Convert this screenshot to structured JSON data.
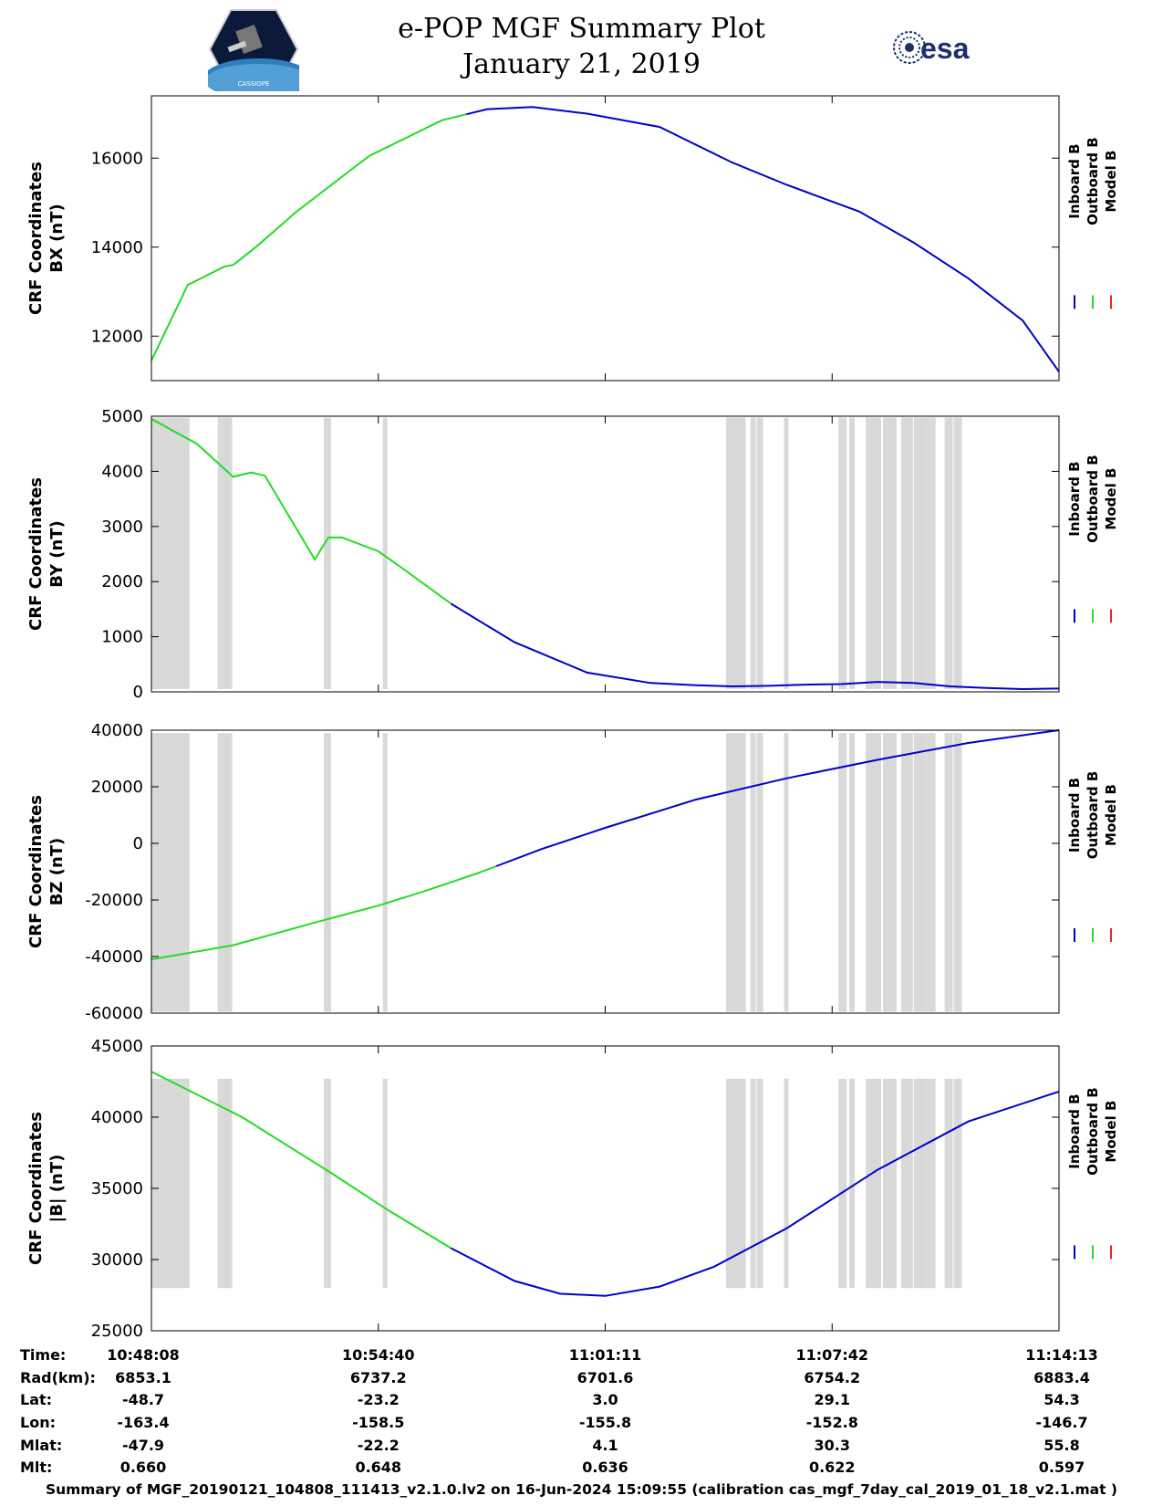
{
  "title": {
    "line1": "e-POP MGF Summary Plot",
    "line2": "January 21, 2019",
    "logo_left_text": "CASSIOPE",
    "logo_right_text": "esa"
  },
  "colors": {
    "inboard": "#0000cc",
    "outboard": "#22dd22",
    "model": "#ee2222",
    "shade": "#d9d9d9"
  },
  "legend_labels": [
    "Inboard B",
    "Outboard B",
    "Model B"
  ],
  "chart_data": [
    {
      "type": "line",
      "ylabel": [
        "CRF Coordinates",
        "BX (nT)"
      ],
      "ylim": [
        11000,
        17400
      ],
      "yticks": [
        12000,
        14000,
        16000
      ],
      "x": [
        0,
        40,
        80,
        90,
        115,
        160,
        240,
        320,
        370,
        420,
        480,
        560,
        640,
        700,
        780,
        840,
        900,
        960,
        1000
      ],
      "series": [
        {
          "name": "Outboard B",
          "x_end": 347,
          "values": [
            11450,
            13150,
            13560,
            13600,
            14000,
            14800,
            16050,
            16850,
            17100,
            17150,
            17000,
            16700,
            15900,
            15400,
            14800,
            14100,
            13300,
            12350,
            11200
          ]
        },
        {
          "name": "Inboard B",
          "x_start": 347,
          "values": [
            11450,
            13150,
            13560,
            13600,
            14000,
            14800,
            16050,
            16850,
            17100,
            17150,
            17000,
            16700,
            15900,
            15400,
            14800,
            14100,
            13300,
            12350,
            11200
          ]
        }
      ]
    },
    {
      "type": "line",
      "ylabel": [
        "CRF Coordinates",
        "BY (nT)"
      ],
      "ylim": [
        0,
        5000
      ],
      "yticks": [
        0,
        1000,
        2000,
        3000,
        4000,
        5000
      ],
      "x": [
        0,
        50,
        90,
        110,
        125,
        180,
        195,
        210,
        250,
        280,
        330,
        400,
        480,
        550,
        600,
        640,
        680,
        720,
        760,
        800,
        840,
        880,
        920,
        960,
        1000
      ],
      "series": [
        {
          "name": "Outboard B",
          "x_end": 330,
          "values": [
            4950,
            4500,
            3900,
            3980,
            3920,
            2400,
            2800,
            2800,
            2550,
            2200,
            1600,
            900,
            350,
            160,
            120,
            100,
            110,
            130,
            140,
            180,
            160,
            100,
            70,
            50,
            60
          ]
        },
        {
          "name": "Inboard B",
          "x_start": 330,
          "values": [
            4950,
            4500,
            3900,
            3980,
            3920,
            2400,
            2800,
            2800,
            2550,
            2200,
            1600,
            900,
            350,
            160,
            120,
            100,
            110,
            130,
            140,
            180,
            160,
            100,
            70,
            50,
            60
          ]
        }
      ]
    },
    {
      "type": "line",
      "ylabel": [
        "CRF Coordinates",
        "BZ (nT)"
      ],
      "ylim": [
        -60000,
        40000
      ],
      "yticks": [
        -60000,
        -40000,
        -20000,
        0,
        20000,
        40000
      ],
      "x": [
        0,
        90,
        180,
        250,
        300,
        360,
        430,
        500,
        600,
        700,
        800,
        900,
        1000
      ],
      "series": [
        {
          "name": "Outboard B",
          "x_end": 380,
          "values": [
            -41000,
            -36000,
            -28000,
            -22000,
            -17000,
            -10500,
            -2000,
            5500,
            15500,
            23000,
            29500,
            35500,
            40000
          ]
        },
        {
          "name": "Inboard B",
          "x_start": 380,
          "values": [
            -41000,
            -36000,
            -28000,
            -22000,
            -17000,
            -10500,
            -2000,
            5500,
            15500,
            23000,
            29500,
            35500,
            40000
          ]
        }
      ]
    },
    {
      "type": "line",
      "ylabel": [
        "CRF Coordinates",
        "|B| (nT)"
      ],
      "ylim": [
        25000,
        45000
      ],
      "yticks": [
        25000,
        30000,
        35000,
        40000,
        45000
      ],
      "x": [
        0,
        100,
        200,
        260,
        330,
        400,
        450,
        500,
        560,
        620,
        700,
        800,
        900,
        1000
      ],
      "series": [
        {
          "name": "Outboard B",
          "x_end": 330,
          "values": [
            43200,
            40000,
            36000,
            33500,
            30800,
            28500,
            27600,
            27450,
            28100,
            29500,
            32200,
            36300,
            39700,
            41800
          ]
        },
        {
          "name": "Inboard B",
          "x_start": 330,
          "values": [
            43200,
            40000,
            36000,
            33500,
            30800,
            28500,
            27600,
            27450,
            28100,
            29500,
            32200,
            36300,
            39700,
            41800
          ]
        }
      ]
    }
  ],
  "gaps": [
    [
      0,
      42
    ],
    [
      73,
      89
    ],
    [
      190,
      198
    ],
    [
      255,
      260
    ],
    [
      633,
      655
    ],
    [
      660,
      666
    ],
    [
      667,
      674
    ],
    [
      697,
      702
    ],
    [
      757,
      766
    ],
    [
      769,
      775
    ],
    [
      787,
      804
    ],
    [
      806,
      821
    ],
    [
      826,
      839
    ],
    [
      840,
      854
    ],
    [
      854,
      864
    ],
    [
      874,
      883
    ],
    [
      884,
      893
    ]
  ],
  "time_table": {
    "labels": [
      "Time:",
      "Rad(km):",
      "Lat:",
      "Lon:",
      "Mlat:",
      "Mlt:"
    ],
    "columns": [
      [
        "10:48:08",
        "6853.1",
        "-48.7",
        "-163.4",
        "-47.9",
        "0.660"
      ],
      [
        "10:54:40",
        "6737.2",
        "-23.2",
        "-158.5",
        "-22.2",
        "0.648"
      ],
      [
        "11:01:11",
        "6701.6",
        "3.0",
        "-155.8",
        "4.1",
        "0.636"
      ],
      [
        "11:07:42",
        "6754.2",
        "29.1",
        "-152.8",
        "30.3",
        "0.622"
      ],
      [
        "11:14:13",
        "6883.4",
        "54.3",
        "-146.7",
        "55.8",
        "0.597"
      ]
    ]
  },
  "footer": "Summary of MGF_20190121_104808_111413_v2.1.0.lv2 on 16-Jun-2024 15:09:55 (calibration cas_mgf_7day_cal_2019_01_18_v2.1.mat )"
}
